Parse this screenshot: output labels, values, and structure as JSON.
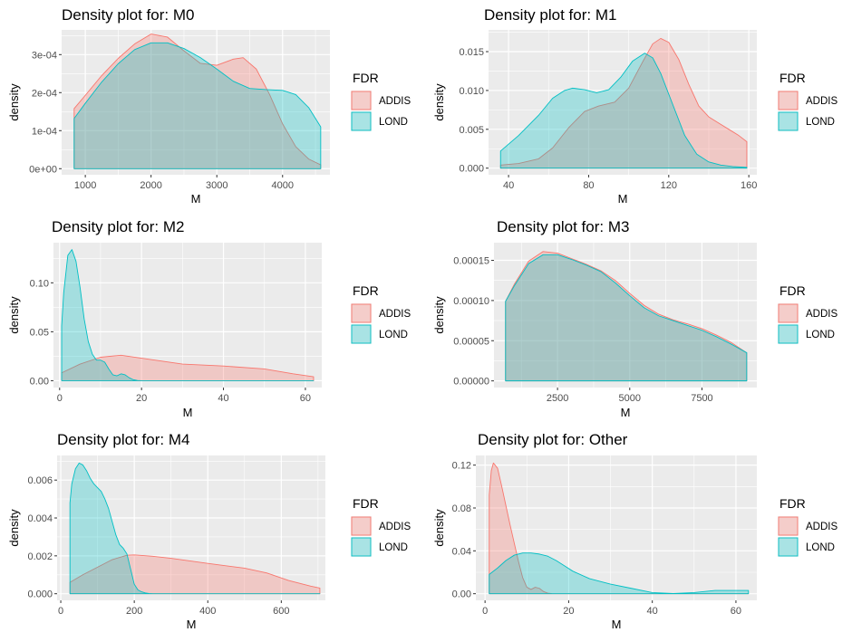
{
  "legend": {
    "title": "FDR",
    "items": [
      {
        "name": "ADDIS",
        "fill": "#F8766D",
        "stroke": "#F8766D"
      },
      {
        "name": "LOND",
        "fill": "#00BFC4",
        "stroke": "#00BFC4"
      }
    ]
  },
  "colors": {
    "panel_bg": "#EBEBEB",
    "grid": "#FFFFFF",
    "ADDIS": "#F8766D",
    "LOND": "#00BFC4"
  },
  "chart_data": [
    {
      "type": "area",
      "title": "Density plot for: M0",
      "xlabel": "M",
      "ylabel": "density",
      "xlim": [
        640,
        4720
      ],
      "ylim": [
        -1.6e-05,
        0.000365
      ],
      "xticks": [
        1000,
        2000,
        3000,
        4000
      ],
      "xtick_labels": [
        "1000",
        "2000",
        "3000",
        "4000"
      ],
      "yticks": [
        0,
        0.0001,
        0.0002,
        0.0003
      ],
      "ytick_labels": [
        "0e+00",
        "1e-04",
        "2e-04",
        "3e-04"
      ],
      "series": [
        {
          "name": "ADDIS",
          "x": [
            830,
            1000,
            1250,
            1500,
            1750,
            2000,
            2250,
            2500,
            2750,
            3000,
            3250,
            3400,
            3600,
            3800,
            4000,
            4200,
            4400,
            4580
          ],
          "y": [
            0.000158,
            0.000193,
            0.000245,
            0.00029,
            0.000328,
            0.000354,
            0.000346,
            0.00031,
            0.000277,
            0.000272,
            0.000288,
            0.000292,
            0.000262,
            0.000196,
            0.000118,
            5.8e-05,
            2.5e-05,
            1e-05
          ]
        },
        {
          "name": "LOND",
          "x": [
            830,
            1000,
            1250,
            1500,
            1750,
            2000,
            2250,
            2500,
            2750,
            3000,
            3250,
            3500,
            3750,
            4000,
            4200,
            4400,
            4580
          ],
          "y": [
            0.000132,
            0.000172,
            0.000228,
            0.000276,
            0.000313,
            0.000331,
            0.000331,
            0.000316,
            0.000292,
            0.000262,
            0.00023,
            0.000211,
            0.000208,
            0.000206,
            0.000195,
            0.00016,
            0.00011
          ]
        }
      ]
    },
    {
      "type": "area",
      "title": "Density plot for: M1",
      "xlabel": "M",
      "ylabel": "density",
      "xlim": [
        30,
        164
      ],
      "ylim": [
        -0.00085,
        0.0178
      ],
      "xticks": [
        40,
        80,
        120,
        160
      ],
      "xtick_labels": [
        "40",
        "80",
        "120",
        "160"
      ],
      "yticks": [
        0,
        0.005,
        0.01,
        0.015
      ],
      "ytick_labels": [
        "0.000",
        "0.005",
        "0.010",
        "0.015"
      ],
      "series": [
        {
          "name": "ADDIS",
          "x": [
            36,
            45,
            55,
            62,
            70,
            78,
            85,
            93,
            100,
            107,
            112,
            116,
            120,
            125,
            130,
            135,
            140,
            145,
            150,
            155,
            159
          ],
          "y": [
            0.0004,
            0.0006,
            0.0012,
            0.0026,
            0.0052,
            0.0073,
            0.008,
            0.0085,
            0.0103,
            0.0137,
            0.016,
            0.0167,
            0.0162,
            0.014,
            0.0108,
            0.008,
            0.0066,
            0.0058,
            0.005,
            0.0042,
            0.0034
          ]
        },
        {
          "name": "LOND",
          "x": [
            36,
            45,
            55,
            62,
            68,
            72,
            78,
            84,
            90,
            96,
            102,
            108,
            112,
            116,
            122,
            128,
            134,
            140,
            146,
            152,
            159
          ],
          "y": [
            0.0022,
            0.0042,
            0.0068,
            0.009,
            0.01,
            0.0103,
            0.0101,
            0.0097,
            0.0101,
            0.0117,
            0.0138,
            0.0148,
            0.0142,
            0.0122,
            0.0082,
            0.0042,
            0.0018,
            0.0008,
            0.0004,
            0.0002,
            0.0001
          ]
        }
      ]
    },
    {
      "type": "area",
      "title": "Density plot for: M2",
      "xlabel": "M",
      "ylabel": "density",
      "xlim": [
        -1.5,
        64
      ],
      "ylim": [
        -0.007,
        0.141
      ],
      "xticks": [
        0,
        20,
        40,
        60
      ],
      "xtick_labels": [
        "0",
        "20",
        "40",
        "60"
      ],
      "yticks": [
        0,
        0.05,
        0.1
      ],
      "ytick_labels": [
        "0.00",
        "0.05",
        "0.10"
      ],
      "series": [
        {
          "name": "ADDIS",
          "x": [
            0.5,
            5,
            10,
            15,
            20,
            30,
            40,
            50,
            57,
            62
          ],
          "y": [
            0.008,
            0.017,
            0.024,
            0.026,
            0.023,
            0.017,
            0.015,
            0.012,
            0.007,
            0.004
          ]
        },
        {
          "name": "LOND",
          "x": [
            0.5,
            1,
            2,
            3,
            4,
            5,
            6,
            7,
            8,
            9,
            10,
            11,
            12,
            13,
            14,
            15,
            16,
            17,
            18,
            19,
            20,
            62
          ],
          "y": [
            0.056,
            0.09,
            0.128,
            0.134,
            0.122,
            0.095,
            0.063,
            0.04,
            0.027,
            0.021,
            0.021,
            0.019,
            0.012,
            0.006,
            0.005,
            0.007,
            0.006,
            0.003,
            0.001,
            0.0002,
            0,
            0
          ]
        }
      ]
    },
    {
      "type": "area",
      "title": "Density plot for: M3",
      "xlabel": "M",
      "ylabel": "density",
      "xlim": [
        300,
        9400
      ],
      "ylim": [
        -8.3e-06,
        0.000172
      ],
      "xticks": [
        2500,
        5000,
        7500
      ],
      "xtick_labels": [
        "2500",
        "5000",
        "7500"
      ],
      "yticks": [
        0,
        5e-05,
        0.0001,
        0.00015
      ],
      "ytick_labels": [
        "0.00000",
        "0.00005",
        "0.00010",
        "0.00015"
      ],
      "series": [
        {
          "name": "ADDIS",
          "x": [
            700,
            1000,
            1500,
            2000,
            2500,
            3000,
            3500,
            4000,
            4500,
            5000,
            5500,
            6000,
            6500,
            7000,
            7500,
            8000,
            8500,
            9050
          ],
          "y": [
            9.9e-05,
            0.00012,
            0.000149,
            0.000161,
            0.000159,
            0.000152,
            0.000145,
            0.000137,
            0.000125,
            0.000109,
            9.4e-05,
            8.3e-05,
            7.6e-05,
            7.1e-05,
            6.5e-05,
            5.7e-05,
            4.8e-05,
            3.5e-05
          ]
        },
        {
          "name": "LOND",
          "x": [
            700,
            1000,
            1500,
            2000,
            2500,
            3000,
            3500,
            4000,
            4500,
            5000,
            5500,
            6000,
            6500,
            7000,
            7500,
            8000,
            8500,
            9050
          ],
          "y": [
            9.9e-05,
            0.000118,
            0.000146,
            0.000157,
            0.000157,
            0.000151,
            0.000144,
            0.000136,
            0.000122,
            0.000106,
            9.1e-05,
            8.1e-05,
            7.5e-05,
            6.9e-05,
            6.3e-05,
            5.5e-05,
            4.6e-05,
            3.5e-05
          ]
        }
      ]
    },
    {
      "type": "area",
      "title": "Density plot for: M4",
      "xlabel": "M",
      "ylabel": "density",
      "xlim": [
        -10,
        720
      ],
      "ylim": [
        -0.00035,
        0.0073
      ],
      "xticks": [
        0,
        200,
        400,
        600
      ],
      "xtick_labels": [
        "0",
        "200",
        "400",
        "600"
      ],
      "yticks": [
        0,
        0.002,
        0.004,
        0.006
      ],
      "ytick_labels": [
        "0.000",
        "0.002",
        "0.004",
        "0.006"
      ],
      "series": [
        {
          "name": "ADDIS",
          "x": [
            25,
            60,
            100,
            140,
            180,
            200,
            250,
            300,
            400,
            500,
            560,
            620,
            680,
            705
          ],
          "y": [
            0.0006,
            0.001,
            0.0014,
            0.0018,
            0.00203,
            0.00205,
            0.00198,
            0.00187,
            0.0016,
            0.00135,
            0.0011,
            0.0007,
            0.0004,
            0.0003
          ]
        },
        {
          "name": "LOND",
          "x": [
            25,
            30,
            40,
            50,
            60,
            70,
            80,
            90,
            100,
            110,
            120,
            130,
            140,
            150,
            160,
            170,
            180,
            190,
            200,
            210,
            220,
            230,
            240,
            250,
            705
          ],
          "y": [
            0.0048,
            0.0058,
            0.0066,
            0.0069,
            0.0068,
            0.0065,
            0.0061,
            0.0058,
            0.0056,
            0.0054,
            0.005,
            0.0045,
            0.0038,
            0.0031,
            0.0026,
            0.0024,
            0.0021,
            0.0013,
            0.0005,
            0.0002,
            0.0001,
            4e-05,
            1e-05,
            0,
            0
          ]
        }
      ]
    },
    {
      "type": "area",
      "title": "Density plot for: Other",
      "xlabel": "M",
      "ylabel": "density",
      "xlim": [
        -2.2,
        65
      ],
      "ylim": [
        -0.0062,
        0.129
      ],
      "xticks": [
        0,
        20,
        40,
        60
      ],
      "xtick_labels": [
        "0",
        "20",
        "40",
        "60"
      ],
      "yticks": [
        0,
        0.04,
        0.08,
        0.12
      ],
      "ytick_labels": [
        "0.00",
        "0.04",
        "0.08",
        "0.12"
      ],
      "series": [
        {
          "name": "ADDIS",
          "x": [
            1,
            1.5,
            2,
            3,
            4,
            5,
            6,
            7,
            8,
            9,
            10,
            11,
            12,
            13,
            14,
            15,
            16,
            18,
            20,
            63
          ],
          "y": [
            0.092,
            0.115,
            0.122,
            0.117,
            0.1,
            0.082,
            0.064,
            0.047,
            0.03,
            0.015,
            0.006,
            0.004,
            0.006,
            0.005,
            0.002,
            0.0005,
            0.0001,
            0,
            0,
            0
          ]
        },
        {
          "name": "LOND",
          "x": [
            1,
            3,
            5,
            7,
            9,
            11,
            13,
            15,
            17,
            19,
            21,
            25,
            30,
            35,
            40,
            45,
            50,
            55,
            60,
            63
          ],
          "y": [
            0.018,
            0.024,
            0.031,
            0.036,
            0.038,
            0.038,
            0.037,
            0.035,
            0.031,
            0.026,
            0.021,
            0.014,
            0.009,
            0.005,
            0.001,
            0.0002,
            0.001,
            0.003,
            0.003,
            0.003
          ]
        }
      ]
    }
  ]
}
